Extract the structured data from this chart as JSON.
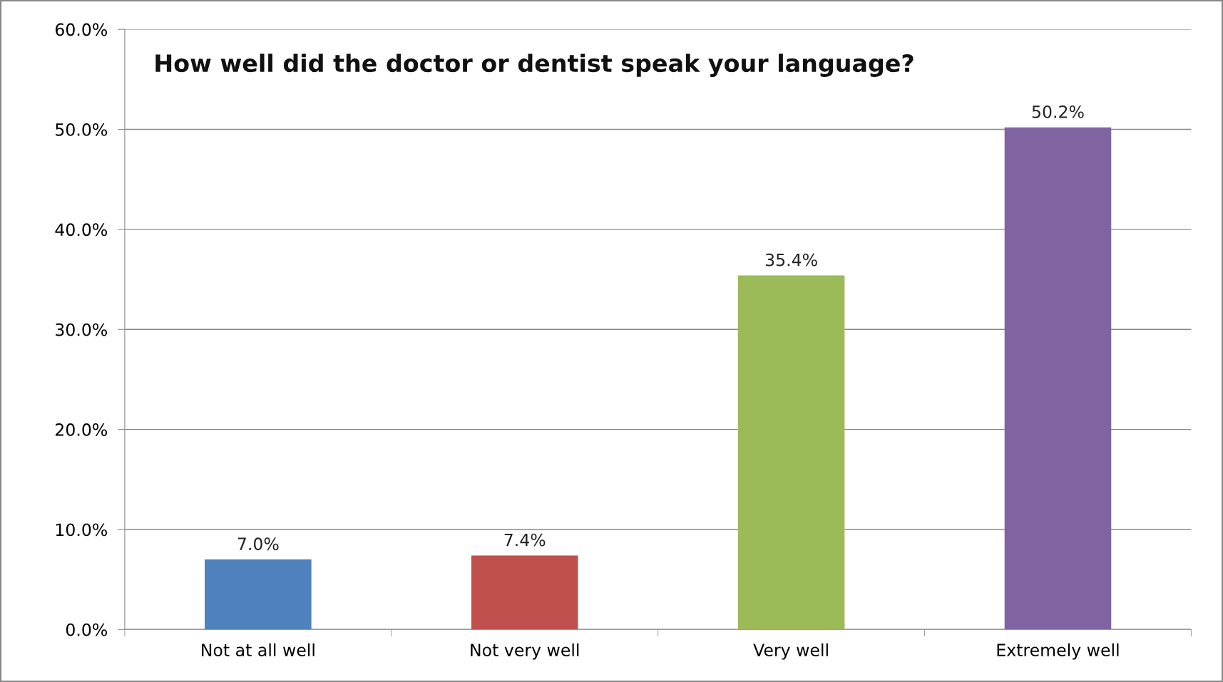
{
  "chart_data": {
    "type": "bar",
    "title": "How well did the doctor or dentist speak your language?",
    "categories": [
      "Not at all well",
      "Not very well",
      "Very well",
      "Extremely well"
    ],
    "values": [
      7.0,
      7.4,
      35.4,
      50.2
    ],
    "colors": [
      "#4f81bd",
      "#c0504d",
      "#9bbb59",
      "#8064a2"
    ],
    "value_labels": [
      "7.0%",
      "7.4%",
      "35.4%",
      "50.2%"
    ],
    "ylim": [
      0,
      60
    ],
    "yticks": [
      {
        "value": 0,
        "label": "0.0%"
      },
      {
        "value": 10,
        "label": "10.0%"
      },
      {
        "value": 20,
        "label": "20.0%"
      },
      {
        "value": 30,
        "label": "30.0%"
      },
      {
        "value": 40,
        "label": "40.0%"
      },
      {
        "value": 50,
        "label": "50.0%"
      },
      {
        "value": 60,
        "label": "60.0%"
      }
    ],
    "grid": "y"
  }
}
